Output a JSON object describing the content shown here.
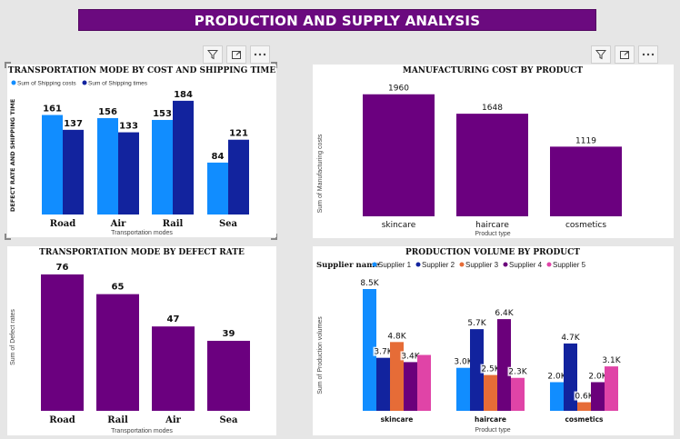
{
  "banner_title": "PRODUCTION AND SUPPLY ANALYSIS",
  "toolbar": {
    "filter_icon": "filter-icon",
    "focus_icon": "focus-mode-icon",
    "more_icon": "more-options-icon"
  },
  "colors": {
    "banner": "#6b0a7f",
    "purple": "#6b007f",
    "shipping_costs": "#118dff",
    "shipping_times": "#12239e",
    "s1": "#118dff",
    "s2": "#12239e",
    "s3": "#e66c37",
    "s4": "#6b007b",
    "s5": "#e044a7"
  },
  "chart_data": [
    {
      "id": "transport_cost_time",
      "type": "bar",
      "title": "TRANSPORTATION MODE BY COST AND SHIPPING TIME",
      "xlabel": "Transportation modes",
      "ylabel": "DEFECT RATE AND SHIPPING TIME",
      "legend": "top-left",
      "categories": [
        "Road",
        "Air",
        "Rail",
        "Sea"
      ],
      "series": [
        {
          "name": "Sum of Shipping costs",
          "values": [
            161,
            156,
            153,
            84
          ]
        },
        {
          "name": "Sum of Shipping times",
          "values": [
            137,
            133,
            184,
            121
          ]
        }
      ],
      "ylim": [
        0,
        200
      ]
    },
    {
      "id": "manufacturing_cost",
      "type": "bar",
      "title": "MANUFACTURING COST BY PRODUCT",
      "xlabel": "Product type",
      "ylabel": "Sum of Manufacturing costs",
      "categories": [
        "skincare",
        "haircare",
        "cosmetics"
      ],
      "values": [
        1960,
        1648,
        1119
      ],
      "ylim": [
        0,
        2000
      ]
    },
    {
      "id": "defect_rate",
      "type": "bar",
      "title": "TRANSPORTATION MODE BY DEFECT RATE",
      "xlabel": "Transportation modes",
      "ylabel": "Sum of Defect rates",
      "categories": [
        "Road",
        "Rail",
        "Air",
        "Sea"
      ],
      "values": [
        76,
        65,
        47,
        39
      ],
      "ylim": [
        0,
        80
      ]
    },
    {
      "id": "production_volume",
      "type": "bar",
      "title": "PRODUCTION VOLUME BY PRODUCT",
      "xlabel": "Product type",
      "ylabel": "Sum of Production volumes",
      "legend_title": "Supplier name",
      "legend": "top-left",
      "categories": [
        "skincare",
        "haircare",
        "cosmetics"
      ],
      "series": [
        {
          "name": "Supplier 1",
          "values": [
            8500,
            3000,
            2000
          ],
          "labels": [
            "8.5K",
            "3.0K",
            "2.0K"
          ]
        },
        {
          "name": "Supplier 2",
          "values": [
            3700,
            5700,
            4700
          ],
          "labels": [
            "3.7K",
            "5.7K",
            "4.7K"
          ]
        },
        {
          "name": "Supplier 3",
          "values": [
            4800,
            2500,
            600
          ],
          "labels": [
            "4.8K",
            "2.5K",
            "0.6K"
          ]
        },
        {
          "name": "Supplier 4",
          "values": [
            3400,
            6400,
            2000
          ],
          "labels": [
            "3.4K",
            "6.4K",
            "2.0K"
          ]
        },
        {
          "name": "Supplier 5",
          "values": [
            3900,
            2300,
            3100
          ],
          "labels": [
            "",
            "2.3K",
            "3.1K"
          ]
        }
      ],
      "ylim": [
        0,
        9000
      ]
    }
  ]
}
